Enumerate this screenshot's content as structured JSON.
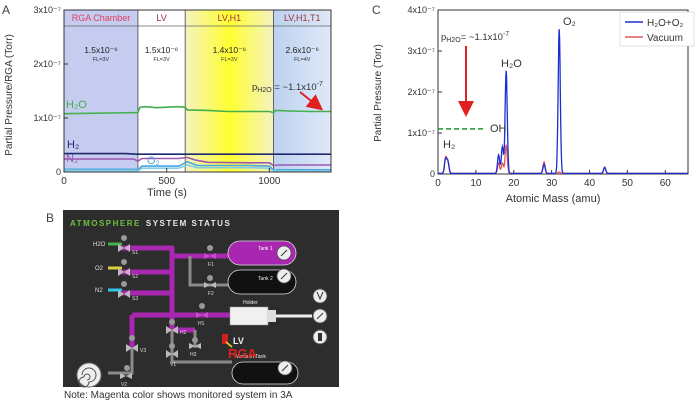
{
  "colors": {
    "region_rga": "#c5ccef",
    "region_lv": "#ffffff",
    "region_lvh1_center": "#ffff30",
    "region_lvh1_edge": "#f4f2c0",
    "region_lvh1t1": "#bcd2f0",
    "h2o_green": "#44b04a",
    "h2_navy": "#1f2a6e",
    "n2_purple": "#9d58b0",
    "o2_cyan": "#4aa5e0",
    "o2_cyan2": "#82cde6",
    "h2o_o2_blue": "#1b2fd0",
    "vacuum_red": "#e2585f",
    "ref_green": "#1a9a2a",
    "arrow_red": "#e02020",
    "panel_bg": "#2d2d2d",
    "pipe_magenta": "#a826b0"
  },
  "chart_data": [
    {
      "panel_label": "A",
      "type": "line",
      "ylabel": "Partial Pressure/RGA (Torr)",
      "xlabel": "Time (s)",
      "xlim": [
        0,
        1300
      ],
      "ylim": [
        0,
        3e-07
      ],
      "xticks": [
        0,
        500,
        1000
      ],
      "xtick_labels": [
        "0",
        "500",
        "1000"
      ],
      "yticks": [
        0,
        1e-07,
        2e-07,
        3e-07
      ],
      "ytick_labels": [
        "0",
        "1x10⁻⁷",
        "2x10⁻⁷",
        "3x10⁻⁷"
      ],
      "regions": [
        {
          "name": "RGA Chamber",
          "x0": 0,
          "x1": 360,
          "pressure": "1.5x10⁻⁶",
          "fl": "FL=3V",
          "fill": "region_rga"
        },
        {
          "name": "LV",
          "x0": 360,
          "x1": 590,
          "pressure": "1.5x10⁻⁶",
          "fl": "FL=3V",
          "fill": "region_lv"
        },
        {
          "name": "LV,H1",
          "x0": 590,
          "x1": 1020,
          "pressure": "1.4x10⁻⁶",
          "fl": "FL=3V",
          "fill": "region_lvh1"
        },
        {
          "name": "LV,H1,T1",
          "x0": 1020,
          "x1": 1300,
          "pressure": "2.6x10⁻⁶",
          "fl": "FL=4V",
          "fill": "region_lvh1t1"
        }
      ],
      "series": [
        {
          "name": "H₂O",
          "color": "h2o_green",
          "x": [
            0,
            360,
            370,
            400,
            450,
            500,
            550,
            590,
            600,
            700,
            800,
            900,
            1000,
            1020,
            1030,
            1100,
            1200,
            1300
          ],
          "y": [
            1.08e-07,
            1.1e-07,
            1.2e-07,
            1.21e-07,
            1.19e-07,
            1.2e-07,
            1.21e-07,
            1.2e-07,
            1.15e-07,
            1.14e-07,
            1.12e-07,
            1.12e-07,
            1.12e-07,
            1.1e-07,
            1.14e-07,
            1.13e-07,
            1.12e-07,
            1.12e-07
          ]
        },
        {
          "name": "H₂",
          "color": "h2_navy",
          "x": [
            0,
            300,
            360,
            600,
            800,
            1000,
            1300
          ],
          "y": [
            3.4e-08,
            3.4e-08,
            3.3e-08,
            3.3e-08,
            3.3e-08,
            3.3e-08,
            3.3e-08
          ]
        },
        {
          "name": "N₂",
          "color": "n2_purple",
          "x": [
            0,
            340,
            360,
            380,
            560,
            600,
            640,
            700,
            900,
            1000,
            1020,
            1040,
            1300
          ],
          "y": [
            2.4e-08,
            2.4e-08,
            2e-08,
            2.5e-08,
            2.5e-08,
            2.7e-08,
            2.2e-08,
            1.8e-08,
            1.7e-08,
            1.7e-08,
            1.2e-08,
            1.3e-08,
            1.3e-08
          ]
        },
        {
          "name": "O₂",
          "color": "o2_cyan",
          "x": [
            0,
            340,
            360,
            380,
            560,
            600,
            650,
            900,
            1000,
            1020,
            1040,
            1300
          ],
          "y": [
            5e-09,
            5e-09,
            4e-09,
            1.1e-08,
            1.1e-08,
            1.9e-08,
            1.2e-08,
            1.2e-08,
            1.1e-08,
            3e-09,
            4e-09,
            4e-09
          ]
        },
        {
          "name": "O₂ (2)",
          "color": "o2_cyan2",
          "x": [
            0,
            340,
            360,
            380,
            560,
            600,
            650,
            900,
            1000,
            1020,
            1040,
            1300
          ],
          "y": [
            3e-09,
            3e-09,
            2e-09,
            7e-09,
            7e-09,
            1.3e-08,
            8e-09,
            8e-09,
            7e-09,
            2e-09,
            2e-09,
            2e-09
          ]
        }
      ],
      "labels": {
        "h2o": "H₂O",
        "h2": "H₂",
        "n2": "N₂",
        "o2": "O₂"
      },
      "annotation": "p_H2O = ~1.1x10⁻⁷",
      "annotation_prefix": "p",
      "annotation_sub": "H2O",
      "annotation_rest": " = ~1.1x10",
      "annotation_exp": "-7"
    },
    {
      "panel_label": "C",
      "type": "line",
      "ylabel": "Partial Pressure (Torr)",
      "xlabel": "Atomic Mass (amu)",
      "xlim": [
        0,
        66
      ],
      "ylim": [
        0,
        4e-07
      ],
      "xticks": [
        0,
        10,
        20,
        30,
        40,
        50,
        60
      ],
      "xtick_labels": [
        "0",
        "10",
        "20",
        "30",
        "40",
        "50",
        "60"
      ],
      "yticks": [
        0,
        1e-07,
        2e-07,
        3e-07,
        4e-07
      ],
      "ytick_labels": [
        "0",
        "1x10⁻⁷",
        "2x10⁻⁷",
        "3x10⁻⁷",
        "4x10⁻⁷"
      ],
      "legend_position": "top-right",
      "series": [
        {
          "name": "H₂O+O₂",
          "color": "h2o_o2_blue",
          "peaks": [
            {
              "m": 2,
              "h": 3.5e-08
            },
            {
              "m": 2.6,
              "h": 2.8e-08
            },
            {
              "m": 16,
              "h": 4.5e-08
            },
            {
              "m": 17,
              "h": 6.5e-08
            },
            {
              "m": 18,
              "h": 2.5e-07
            },
            {
              "m": 28,
              "h": 2.2e-08
            },
            {
              "m": 32,
              "h": 3.52e-07
            },
            {
              "m": 44,
              "h": 1.5e-08
            }
          ]
        },
        {
          "name": "Vacuum",
          "color": "vacuum_red",
          "peaks": [
            {
              "m": 2,
              "h": 3.8e-08
            },
            {
              "m": 2.6,
              "h": 3e-08
            },
            {
              "m": 16,
              "h": 2.5e-08
            },
            {
              "m": 17,
              "h": 2.5e-08
            },
            {
              "m": 18,
              "h": 7e-08
            },
            {
              "m": 28,
              "h": 2.8e-08
            },
            {
              "m": 32,
              "h": 3e-09
            },
            {
              "m": 44,
              "h": 1.5e-08
            }
          ]
        }
      ],
      "peak_labels": {
        "o2": "O₂",
        "h2o": "H₂O",
        "oh": "OH",
        "h2": "H₂"
      },
      "reference_line_y": 1.1e-07,
      "annotation_prefix": "p",
      "annotation_sub": "H2O",
      "annotation_rest": "= ~1.1x10",
      "annotation_exp": "-7"
    }
  ],
  "schematic": {
    "panel_label": "B",
    "title_part1": "ATMOSPHERE",
    "title_part2": "SYSTEM STATUS",
    "gas_inlets": [
      "H2O",
      "O2",
      "N2"
    ],
    "valves": [
      "S1",
      "S2",
      "S3",
      "F1",
      "F2",
      "H1",
      "H2",
      "H3",
      "V1",
      "V2",
      "V3"
    ],
    "tanks": [
      "Tank 1",
      "Tank 2"
    ],
    "holder": "Holder",
    "vacuum_tank": "Vacuum Tank",
    "lv_label": "LV",
    "rga_label": "RGA"
  },
  "note": "Note: Magenta color shows monitored system in 3A"
}
